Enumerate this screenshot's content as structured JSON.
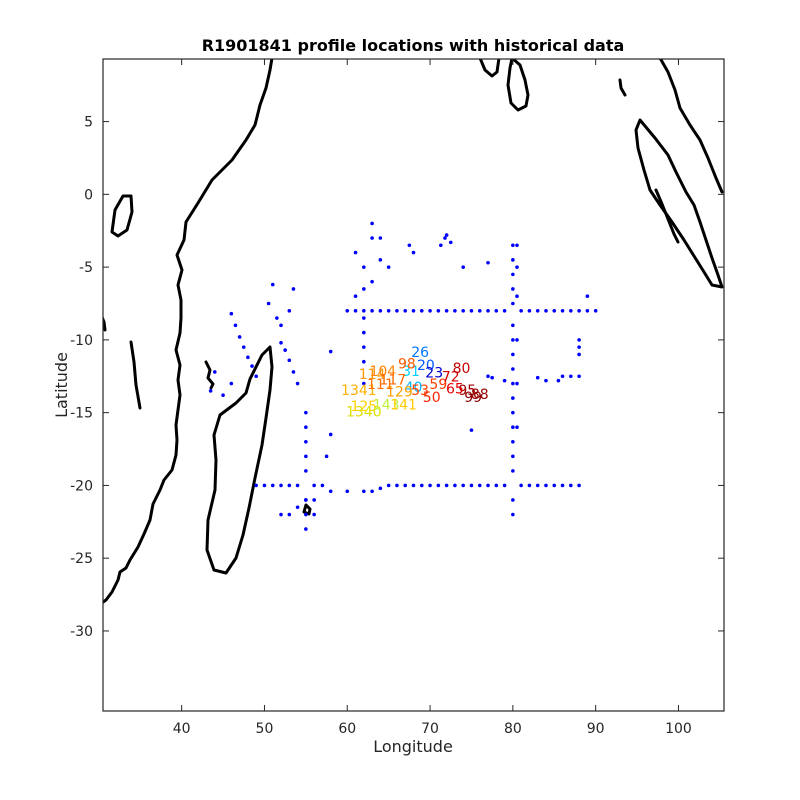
{
  "chart_data": {
    "type": "scatter",
    "title": "R1901841 profile locations with historical data",
    "xlabel": "Longitude",
    "ylabel": "Latitude",
    "xlim": [
      30.5,
      105.5
    ],
    "ylim": [
      -35.5,
      9.3
    ],
    "xticks": [
      40,
      50,
      60,
      70,
      80,
      90,
      100
    ],
    "yticks": [
      5,
      0,
      -5,
      -10,
      -15,
      -20,
      -25,
      -30
    ],
    "grid": false,
    "legend": "none",
    "colors": {
      "historical": "#0000ff",
      "axis": "#262626",
      "coast": "#000000"
    },
    "historical_points": [
      [
        60,
        -8
      ],
      [
        61,
        -8
      ],
      [
        62,
        -8
      ],
      [
        63,
        -8
      ],
      [
        64,
        -8
      ],
      [
        65,
        -8
      ],
      [
        66,
        -8
      ],
      [
        67,
        -8
      ],
      [
        68,
        -8
      ],
      [
        69,
        -8
      ],
      [
        70,
        -8
      ],
      [
        71,
        -8
      ],
      [
        72,
        -8
      ],
      [
        73,
        -8
      ],
      [
        74,
        -8
      ],
      [
        75,
        -8
      ],
      [
        76,
        -8
      ],
      [
        77,
        -8
      ],
      [
        78,
        -8
      ],
      [
        79,
        -8
      ],
      [
        81,
        -8
      ],
      [
        82,
        -8
      ],
      [
        83,
        -8
      ],
      [
        84,
        -8
      ],
      [
        85,
        -8
      ],
      [
        86,
        -8
      ],
      [
        87,
        -8
      ],
      [
        88,
        -8
      ],
      [
        89,
        -8
      ],
      [
        90,
        -8
      ],
      [
        49,
        -20
      ],
      [
        50,
        -20
      ],
      [
        51,
        -20
      ],
      [
        52,
        -20
      ],
      [
        53,
        -20
      ],
      [
        54,
        -20
      ],
      [
        56,
        -20
      ],
      [
        57,
        -20
      ],
      [
        58,
        -20.4
      ],
      [
        60,
        -20.4
      ],
      [
        62,
        -20.4
      ],
      [
        63,
        -20.4
      ],
      [
        64,
        -20.2
      ],
      [
        65,
        -20
      ],
      [
        66,
        -20
      ],
      [
        67,
        -20
      ],
      [
        68,
        -20
      ],
      [
        69,
        -20
      ],
      [
        70,
        -20
      ],
      [
        71,
        -20
      ],
      [
        72,
        -20
      ],
      [
        73,
        -20
      ],
      [
        74,
        -20
      ],
      [
        75,
        -20
      ],
      [
        76,
        -20
      ],
      [
        77,
        -20
      ],
      [
        78,
        -20
      ],
      [
        79,
        -20
      ],
      [
        81,
        -20
      ],
      [
        82,
        -20
      ],
      [
        83,
        -20
      ],
      [
        84,
        -20
      ],
      [
        85,
        -20
      ],
      [
        86,
        -20
      ],
      [
        87,
        -20
      ],
      [
        88,
        -20
      ],
      [
        80,
        -3.5
      ],
      [
        80,
        -4.5
      ],
      [
        80,
        -5.5
      ],
      [
        80,
        -6.5
      ],
      [
        80,
        -7.5
      ],
      [
        80,
        -9
      ],
      [
        80,
        -10
      ],
      [
        80,
        -11
      ],
      [
        80,
        -12
      ],
      [
        80,
        -13
      ],
      [
        80,
        -14
      ],
      [
        80,
        -15
      ],
      [
        80,
        -16
      ],
      [
        80,
        -17
      ],
      [
        80,
        -18
      ],
      [
        80,
        -19
      ],
      [
        80,
        -21
      ],
      [
        80,
        -22
      ],
      [
        80.5,
        -3.5
      ],
      [
        80.5,
        -5
      ],
      [
        80.5,
        -7
      ],
      [
        80.5,
        -10
      ],
      [
        80.5,
        -13
      ],
      [
        80.5,
        -16
      ],
      [
        55,
        -15
      ],
      [
        55,
        -16
      ],
      [
        55,
        -17
      ],
      [
        55,
        -18
      ],
      [
        55,
        -19
      ],
      [
        55,
        -21
      ],
      [
        55,
        -22
      ],
      [
        55,
        -23
      ],
      [
        54,
        -13
      ],
      [
        53.5,
        -12.2
      ],
      [
        53,
        -11.4
      ],
      [
        52.5,
        -10.7
      ],
      [
        52,
        -10.2
      ],
      [
        62,
        -8.5
      ],
      [
        62,
        -9.5
      ],
      [
        62,
        -10.5
      ],
      [
        62,
        -11.5
      ],
      [
        62,
        -13
      ],
      [
        61,
        -4
      ],
      [
        62,
        -5
      ],
      [
        63,
        -6
      ],
      [
        61,
        -7
      ],
      [
        62,
        -6.5
      ],
      [
        63,
        -3
      ],
      [
        64,
        -4.5
      ],
      [
        65,
        -5
      ],
      [
        63,
        -2
      ],
      [
        64,
        -3
      ],
      [
        67.5,
        -3.5
      ],
      [
        68,
        -4
      ],
      [
        71.3,
        -3.5
      ],
      [
        71.8,
        -3
      ],
      [
        72,
        -2.8
      ],
      [
        72.5,
        -3.3
      ],
      [
        74,
        -5
      ],
      [
        77,
        -4.7
      ],
      [
        46,
        -8.2
      ],
      [
        46.5,
        -9
      ],
      [
        47,
        -9.8
      ],
      [
        47.5,
        -10.5
      ],
      [
        48,
        -11.2
      ],
      [
        48.5,
        -11.8
      ],
      [
        49,
        -12.5
      ],
      [
        43.5,
        -13.5
      ],
      [
        44,
        -12.2
      ],
      [
        45,
        -13.8
      ],
      [
        46,
        -13
      ],
      [
        51,
        -6.2
      ],
      [
        50.5,
        -7.5
      ],
      [
        51.5,
        -8.5
      ],
      [
        52,
        -9
      ],
      [
        53.5,
        -6.5
      ],
      [
        53,
        -8
      ],
      [
        58,
        -16.5
      ],
      [
        57.5,
        -18
      ],
      [
        56,
        -21
      ],
      [
        56,
        -22
      ],
      [
        54,
        -21.5
      ],
      [
        53,
        -22
      ],
      [
        52,
        -22
      ],
      [
        55,
        -21
      ],
      [
        88,
        -10
      ],
      [
        88,
        -10.5
      ],
      [
        88,
        -11
      ],
      [
        86,
        -12.5
      ],
      [
        87,
        -12.5
      ],
      [
        88,
        -12.5
      ],
      [
        77,
        -12.5
      ],
      [
        77.5,
        -12.6
      ],
      [
        79,
        -12.8
      ],
      [
        83,
        -12.6
      ],
      [
        84,
        -12.8
      ],
      [
        85.5,
        -12.8
      ],
      [
        75,
        -16.2
      ],
      [
        89,
        -7
      ],
      [
        58,
        -10.8
      ]
    ],
    "profile_points": [
      {
        "x": 68.8,
        "y": -10.9,
        "label": "26",
        "color": "#0077ff"
      },
      {
        "x": 69.5,
        "y": -11.8,
        "label": "20",
        "color": "#0059ff"
      },
      {
        "x": 70.5,
        "y": -12.3,
        "label": "23",
        "color": "#0000d0"
      },
      {
        "x": 68.0,
        "y": -13.3,
        "label": "40",
        "color": "#00b2ff"
      },
      {
        "x": 67.7,
        "y": -12.2,
        "label": "31",
        "color": "#00d2ff"
      },
      {
        "x": 71.0,
        "y": -13.1,
        "label": "59",
        "color": "#ff3e00"
      },
      {
        "x": 72.5,
        "y": -12.6,
        "label": "72",
        "color": "#d00000"
      },
      {
        "x": 73.8,
        "y": -12.0,
        "label": "80",
        "color": "#c30000"
      },
      {
        "x": 74.5,
        "y": -13.5,
        "label": "95",
        "color": "#a00000"
      },
      {
        "x": 75.2,
        "y": -14.0,
        "label": "99",
        "color": "#8c0000"
      },
      {
        "x": 76.0,
        "y": -13.8,
        "label": "88",
        "color": "#990000"
      },
      {
        "x": 73.0,
        "y": -13.4,
        "label": "65",
        "color": "#e80000"
      },
      {
        "x": 63.0,
        "y": -12.4,
        "label": "114",
        "color": "#ff9500"
      },
      {
        "x": 64.3,
        "y": -12.2,
        "label": "104",
        "color": "#ff8200"
      },
      {
        "x": 65.5,
        "y": -12.8,
        "label": "117",
        "color": "#ff6800"
      },
      {
        "x": 61.4,
        "y": -13.5,
        "label": "1341",
        "color": "#ffb000"
      },
      {
        "x": 62.0,
        "y": -14.6,
        "label": "125",
        "color": "#ffd000"
      },
      {
        "x": 62.0,
        "y": -15.0,
        "label": "1340",
        "color": "#e0e000"
      },
      {
        "x": 64.7,
        "y": -14.5,
        "label": "143",
        "color": "#c0f040"
      },
      {
        "x": 66.8,
        "y": -14.5,
        "label": "141",
        "color": "#ffcc00"
      },
      {
        "x": 66.3,
        "y": -13.6,
        "label": "129",
        "color": "#ff9e00"
      },
      {
        "x": 64.0,
        "y": -13.1,
        "label": "111",
        "color": "#ff7000"
      },
      {
        "x": 68.8,
        "y": -13.5,
        "label": "53",
        "color": "#ff4400"
      },
      {
        "x": 70.2,
        "y": -14.0,
        "label": "50",
        "color": "#ff2600"
      },
      {
        "x": 67.2,
        "y": -11.7,
        "label": "98",
        "color": "#ff5a00"
      }
    ]
  }
}
